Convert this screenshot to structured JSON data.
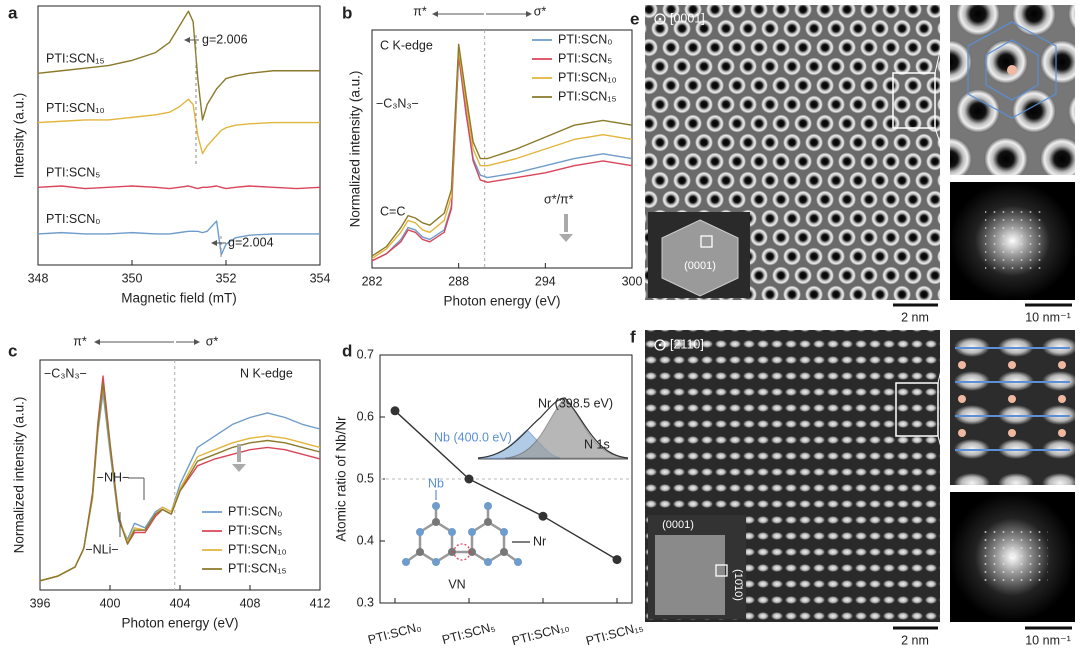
{
  "chart_data": [
    {
      "type": "line",
      "panel": "a",
      "xlabel": "Magnetic field (mT)",
      "ylabel": "Intensity (a.u.)",
      "x": [
        348,
        348.5,
        349,
        349.5,
        350,
        350.5,
        350.8,
        351.0,
        351.2,
        351.3,
        351.4,
        351.5,
        351.6,
        351.8,
        351.9,
        352.0,
        352.2,
        352.5,
        353,
        353.5,
        354
      ],
      "xlim": [
        348,
        354
      ],
      "xticks": [
        348,
        350,
        352,
        354
      ],
      "ylim": [
        0,
        10
      ],
      "legend": "inline",
      "series": [
        {
          "name": "PTI:SCN₀",
          "color": "#6f9ccb",
          "values": [
            1.2,
            1.25,
            1.2,
            1.2,
            1.25,
            1.2,
            1.2,
            1.25,
            1.3,
            1.3,
            1.3,
            1.25,
            1.3,
            1.7,
            0.4,
            0.8,
            1.05,
            1.15,
            1.2,
            1.2,
            1.2
          ]
        },
        {
          "name": "PTI:SCN₅",
          "color": "#d9455a",
          "values": [
            3.0,
            3.05,
            2.95,
            3.0,
            3.05,
            3.0,
            2.95,
            3.0,
            3.05,
            3.0,
            2.95,
            3.0,
            3.0,
            3.05,
            3.0,
            2.95,
            3.0,
            3.05,
            3.0,
            2.95,
            3.0
          ]
        },
        {
          "name": "PTI:SCN₁₀",
          "color": "#e2b53c",
          "values": [
            5.5,
            5.55,
            5.6,
            5.6,
            5.7,
            5.8,
            5.9,
            6.1,
            6.4,
            6.2,
            5.0,
            4.3,
            4.6,
            5.0,
            5.2,
            5.3,
            5.4,
            5.45,
            5.5,
            5.5,
            5.5
          ]
        },
        {
          "name": "PTI:SCN₁₅",
          "color": "#8a7a2a",
          "values": [
            7.4,
            7.5,
            7.6,
            7.7,
            7.9,
            8.2,
            8.6,
            9.2,
            9.8,
            9.4,
            7.2,
            5.6,
            6.2,
            6.8,
            7.0,
            7.2,
            7.3,
            7.4,
            7.5,
            7.5,
            7.5
          ]
        }
      ],
      "annotations": [
        "g=2.006",
        "g=2.004"
      ]
    },
    {
      "type": "line",
      "panel": "b",
      "xlabel": "Photon energy (eV)",
      "ylabel": "Normalized intensity (a.u.)",
      "x": [
        282,
        283,
        284,
        284.5,
        285,
        285.5,
        286,
        287,
        287.5,
        288,
        288.5,
        289,
        289.5,
        290,
        292,
        294,
        296,
        297,
        298,
        299,
        300
      ],
      "xlim": [
        282,
        300
      ],
      "xticks": [
        282,
        288,
        294,
        300
      ],
      "ylim": [
        0,
        10
      ],
      "legend": "upper right",
      "marker_x": 289.8,
      "series": [
        {
          "name": "PTI:SCN₀",
          "color": "#6f9ccb",
          "values": [
            0.3,
            0.6,
            1.2,
            1.7,
            1.6,
            1.3,
            1.2,
            1.6,
            2.6,
            8.9,
            6.5,
            4.6,
            3.9,
            3.8,
            4.0,
            4.3,
            4.6,
            4.7,
            4.8,
            4.7,
            4.6
          ]
        },
        {
          "name": "PTI:SCN₅",
          "color": "#d9455a",
          "values": [
            0.3,
            0.6,
            1.1,
            1.6,
            1.5,
            1.2,
            1.1,
            1.5,
            2.5,
            9.0,
            6.6,
            4.5,
            3.7,
            3.6,
            3.8,
            4.0,
            4.3,
            4.4,
            4.5,
            4.4,
            4.3
          ]
        },
        {
          "name": "PTI:SCN₁₀",
          "color": "#e2b53c",
          "values": [
            0.4,
            0.8,
            1.5,
            2.0,
            1.9,
            1.6,
            1.5,
            2.0,
            3.0,
            9.2,
            7.0,
            5.0,
            4.3,
            4.3,
            4.6,
            5.0,
            5.4,
            5.5,
            5.6,
            5.5,
            5.4
          ]
        },
        {
          "name": "PTI:SCN₁₅",
          "color": "#8a7a2a",
          "values": [
            0.5,
            0.9,
            1.7,
            2.2,
            2.1,
            1.9,
            1.8,
            2.3,
            3.3,
            9.4,
            7.3,
            5.3,
            4.6,
            4.6,
            5.0,
            5.5,
            6.0,
            6.1,
            6.2,
            6.1,
            6.0
          ]
        }
      ],
      "annotations": [
        "π*",
        "σ*",
        "C K-edge",
        "−C₃N₃−",
        "C=C",
        "σ*/π*"
      ]
    },
    {
      "type": "line",
      "panel": "c",
      "xlabel": "Photon energy (eV)",
      "ylabel": "Normalized intensity (a.u.)",
      "x": [
        396,
        397,
        398,
        398.5,
        399,
        399.3,
        399.6,
        400,
        400.5,
        401,
        401.4,
        402,
        402.6,
        403,
        403.5,
        404,
        405,
        406,
        407,
        408,
        409,
        410,
        411,
        412
      ],
      "xlim": [
        396,
        412
      ],
      "xticks": [
        396,
        400,
        404,
        408,
        412
      ],
      "ylim": [
        0,
        10
      ],
      "legend": "lower right",
      "marker_x": 403.7,
      "series": [
        {
          "name": "PTI:SCN₀",
          "color": "#6f9ccb",
          "values": [
            0.4,
            0.6,
            1.0,
            1.8,
            4.0,
            6.8,
            8.6,
            6.0,
            3.0,
            2.2,
            2.9,
            2.7,
            3.4,
            3.6,
            3.4,
            4.6,
            6.2,
            6.7,
            7.2,
            7.5,
            7.7,
            7.5,
            7.2,
            7.0
          ]
        },
        {
          "name": "PTI:SCN₅",
          "color": "#d9455a",
          "values": [
            0.4,
            0.6,
            1.0,
            1.8,
            4.2,
            7.2,
            9.3,
            6.4,
            3.2,
            2.0,
            2.5,
            2.5,
            3.2,
            3.5,
            3.3,
            4.3,
            5.4,
            5.7,
            5.9,
            6.1,
            6.2,
            6.1,
            5.9,
            5.7
          ]
        },
        {
          "name": "PTI:SCN₁₀",
          "color": "#e2b53c",
          "values": [
            0.4,
            0.6,
            1.0,
            1.8,
            4.0,
            6.9,
            8.9,
            6.2,
            3.1,
            2.1,
            2.7,
            2.6,
            3.3,
            3.6,
            3.4,
            4.4,
            5.8,
            6.1,
            6.4,
            6.6,
            6.7,
            6.6,
            6.4,
            6.2
          ]
        },
        {
          "name": "PTI:SCN₁₅",
          "color": "#8a7a2a",
          "values": [
            0.4,
            0.6,
            1.0,
            1.8,
            4.1,
            7.0,
            9.0,
            6.3,
            3.1,
            2.0,
            2.6,
            2.6,
            3.3,
            3.5,
            3.3,
            4.3,
            5.6,
            5.9,
            6.2,
            6.4,
            6.5,
            6.4,
            6.2,
            6.0
          ]
        }
      ],
      "annotations": [
        "π*",
        "σ*",
        "N K-edge",
        "−C₃N₃−",
        "−NH−",
        "−NLi−"
      ]
    },
    {
      "type": "line",
      "panel": "d",
      "ylabel": "Atomic ratio of Nb/Nr",
      "categories": [
        "PTI:SCN₀",
        "PTI:SCN₅",
        "PTI:SCN₁₀",
        "PTI:SCN₁₅"
      ],
      "values": [
        0.61,
        0.5,
        0.44,
        0.37
      ],
      "color": "#333333",
      "ylim": [
        0.3,
        0.7
      ],
      "yticks": [
        0.3,
        0.4,
        0.5,
        0.6,
        0.7
      ],
      "ref_y": 0.5,
      "annotations": [
        "Nr (398.5 eV)",
        "Nb (400.0 eV)",
        "N 1s",
        "Nb",
        "Nr",
        "VN"
      ]
    }
  ],
  "images": [
    {
      "panel": "e",
      "zone_axis": "[0001]",
      "inset_label": "(0001)",
      "scale_bar": "2 nm",
      "fft_scale_bar": "10 nm⁻¹"
    },
    {
      "panel": "f",
      "zone_axis": "[2̄110]",
      "inset_labels": [
        "(0001)",
        "(10̄10)"
      ],
      "scale_bar": "2 nm",
      "fft_scale_bar": "10 nm⁻¹"
    }
  ]
}
